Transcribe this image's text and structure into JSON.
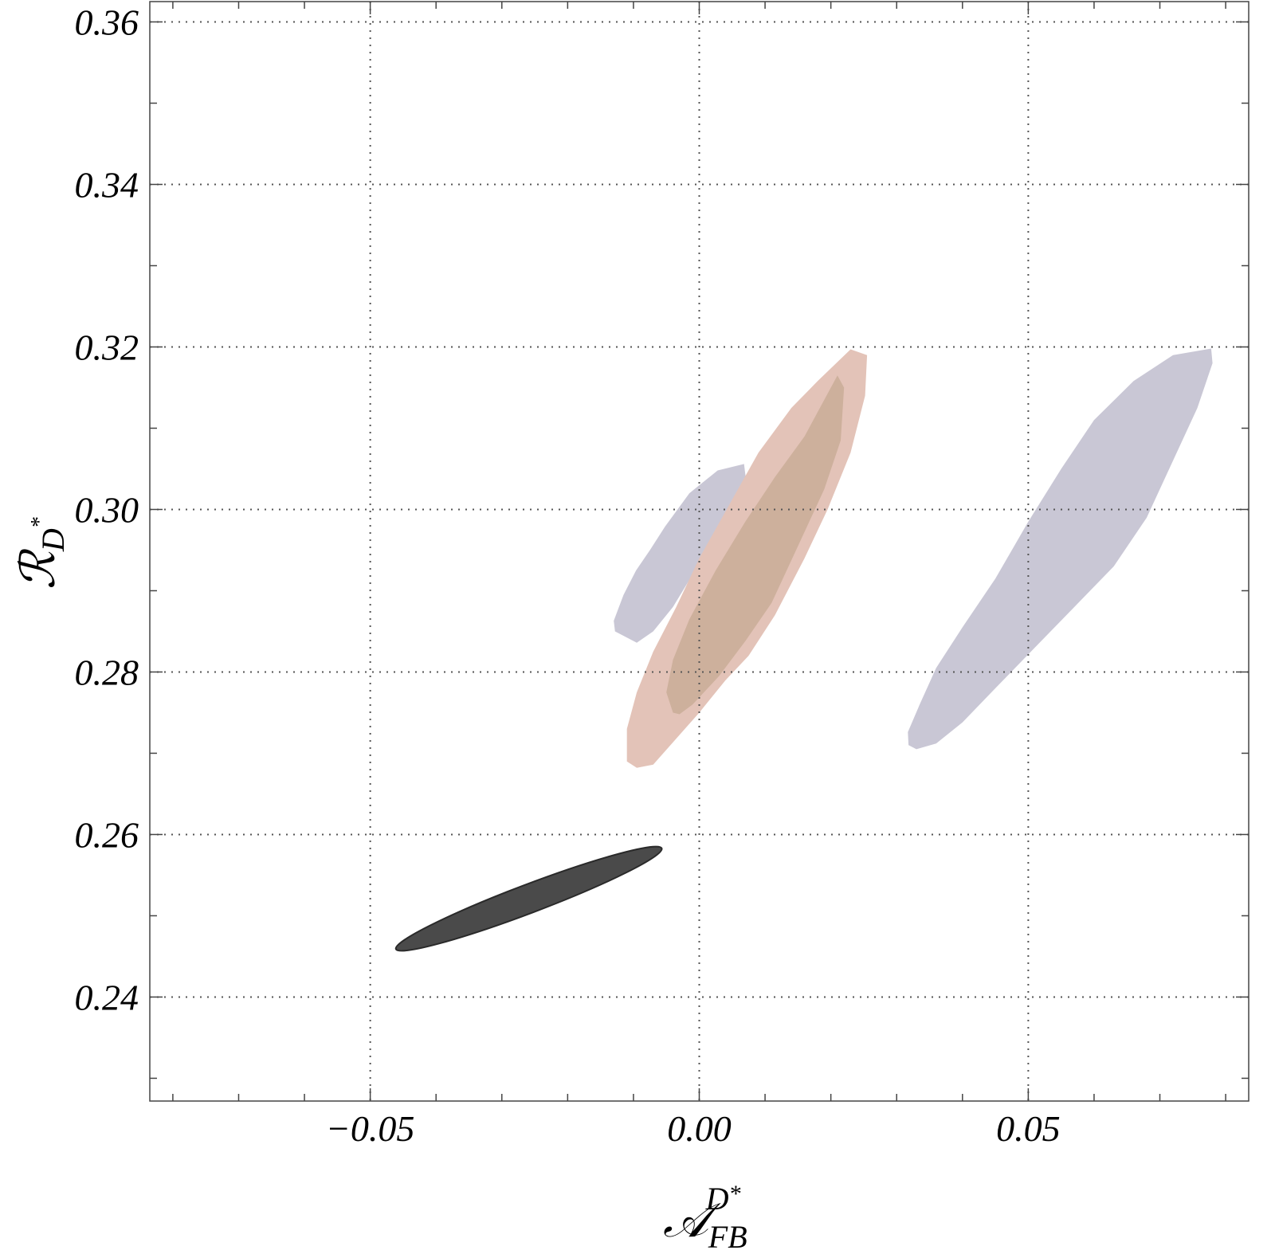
{
  "chart_data": {
    "type": "contour",
    "xlabel": {
      "base": "𝒜",
      "sub": "FB",
      "sup": "D",
      "sup_star": "*"
    },
    "ylabel": {
      "base": "ℛ",
      "sub": "D",
      "sub_star": "*"
    },
    "xlim": [
      -0.0835,
      0.0835
    ],
    "ylim": [
      0.2272,
      0.3625
    ],
    "x_ticks_major": [
      -0.05,
      0.0,
      0.05
    ],
    "x_tick_labels": [
      "−0.05",
      "0.00",
      "0.05"
    ],
    "x_ticks_minor": [
      -0.08,
      -0.07,
      -0.06,
      -0.04,
      -0.03,
      -0.02,
      -0.01,
      0.01,
      0.02,
      0.03,
      0.04,
      0.06,
      0.07,
      0.08
    ],
    "y_ticks_major": [
      0.24,
      0.26,
      0.28,
      0.3,
      0.32,
      0.34,
      0.36
    ],
    "y_tick_labels": [
      "0.24",
      "0.26",
      "0.28",
      "0.30",
      "0.32",
      "0.34",
      "0.36"
    ],
    "y_ticks_minor": [
      0.23,
      0.25,
      0.27,
      0.29,
      0.31,
      0.33,
      0.35
    ],
    "grid": "dotted",
    "colors": {
      "gray_region": "#c9c7d5",
      "pink_region": "#e3c3b8",
      "pink_inner": "#cdb09c",
      "dark_ellipse": "#4a4a4a"
    },
    "regions": [
      {
        "id": "gray-region-left",
        "color": "gray_region",
        "points": [
          [
            -0.0095,
            0.2836
          ],
          [
            -0.0128,
            0.285
          ],
          [
            -0.013,
            0.2863
          ],
          [
            -0.0115,
            0.2895
          ],
          [
            -0.0096,
            0.2925
          ],
          [
            -0.0075,
            0.295
          ],
          [
            -0.0052,
            0.2979
          ],
          [
            -0.0015,
            0.302
          ],
          [
            0.0028,
            0.3048
          ],
          [
            0.0068,
            0.3056
          ],
          [
            0.0072,
            0.303
          ],
          [
            0.0055,
            0.2998
          ],
          [
            0.0035,
            0.2973
          ],
          [
            0.001,
            0.2942
          ],
          [
            -0.001,
            0.292
          ],
          [
            -0.004,
            0.288
          ],
          [
            -0.007,
            0.285
          ]
        ]
      },
      {
        "id": "gray-region-right",
        "color": "gray_region",
        "points": [
          [
            0.033,
            0.2705
          ],
          [
            0.0318,
            0.271
          ],
          [
            0.0317,
            0.2726
          ],
          [
            0.0335,
            0.276
          ],
          [
            0.036,
            0.2805
          ],
          [
            0.04,
            0.2855
          ],
          [
            0.045,
            0.2915
          ],
          [
            0.05,
            0.2985
          ],
          [
            0.055,
            0.305
          ],
          [
            0.06,
            0.311
          ],
          [
            0.066,
            0.3158
          ],
          [
            0.072,
            0.319
          ],
          [
            0.0778,
            0.3198
          ],
          [
            0.078,
            0.318
          ],
          [
            0.0757,
            0.3125
          ],
          [
            0.072,
            0.306
          ],
          [
            0.068,
            0.299
          ],
          [
            0.063,
            0.293
          ],
          [
            0.057,
            0.288
          ],
          [
            0.051,
            0.283
          ],
          [
            0.045,
            0.278
          ],
          [
            0.04,
            0.2738
          ],
          [
            0.036,
            0.2712
          ]
        ]
      },
      {
        "id": "pink-region-outer",
        "color": "pink_region",
        "points": [
          [
            -0.011,
            0.269
          ],
          [
            -0.011,
            0.273
          ],
          [
            -0.0095,
            0.2775
          ],
          [
            -0.007,
            0.2825
          ],
          [
            -0.0035,
            0.288
          ],
          [
            0.0,
            0.294
          ],
          [
            0.0045,
            0.3005
          ],
          [
            0.009,
            0.307
          ],
          [
            0.014,
            0.3125
          ],
          [
            0.018,
            0.3158
          ],
          [
            0.023,
            0.3197
          ],
          [
            0.0255,
            0.319
          ],
          [
            0.0252,
            0.314
          ],
          [
            0.023,
            0.307
          ],
          [
            0.0195,
            0.3
          ],
          [
            0.016,
            0.294
          ],
          [
            0.0115,
            0.287
          ],
          [
            0.0075,
            0.282
          ],
          [
            0.004,
            0.279
          ],
          [
            0.0,
            0.275
          ],
          [
            -0.0035,
            0.2718
          ],
          [
            -0.007,
            0.2686
          ],
          [
            -0.0095,
            0.2682
          ]
        ]
      },
      {
        "id": "pink-region-inner",
        "color": "pink_inner",
        "points": [
          [
            -0.004,
            0.275
          ],
          [
            -0.005,
            0.2775
          ],
          [
            -0.004,
            0.2815
          ],
          [
            -0.0015,
            0.2865
          ],
          [
            0.0025,
            0.2925
          ],
          [
            0.007,
            0.2985
          ],
          [
            0.0115,
            0.304
          ],
          [
            0.016,
            0.309
          ],
          [
            0.021,
            0.3165
          ],
          [
            0.022,
            0.315
          ],
          [
            0.0215,
            0.3085
          ],
          [
            0.019,
            0.3025
          ],
          [
            0.015,
            0.2955
          ],
          [
            0.011,
            0.2885
          ],
          [
            0.007,
            0.2838
          ],
          [
            0.003,
            0.2795
          ],
          [
            -0.001,
            0.276
          ],
          [
            -0.003,
            0.2748
          ]
        ]
      }
    ],
    "ellipse": {
      "id": "dark-ellipse",
      "color": "dark_ellipse",
      "cx": -0.0259,
      "cy": 0.2521,
      "semi_major": 0.0202,
      "semi_major_y": 0.0062,
      "semi_minor": 0.0006
    }
  }
}
